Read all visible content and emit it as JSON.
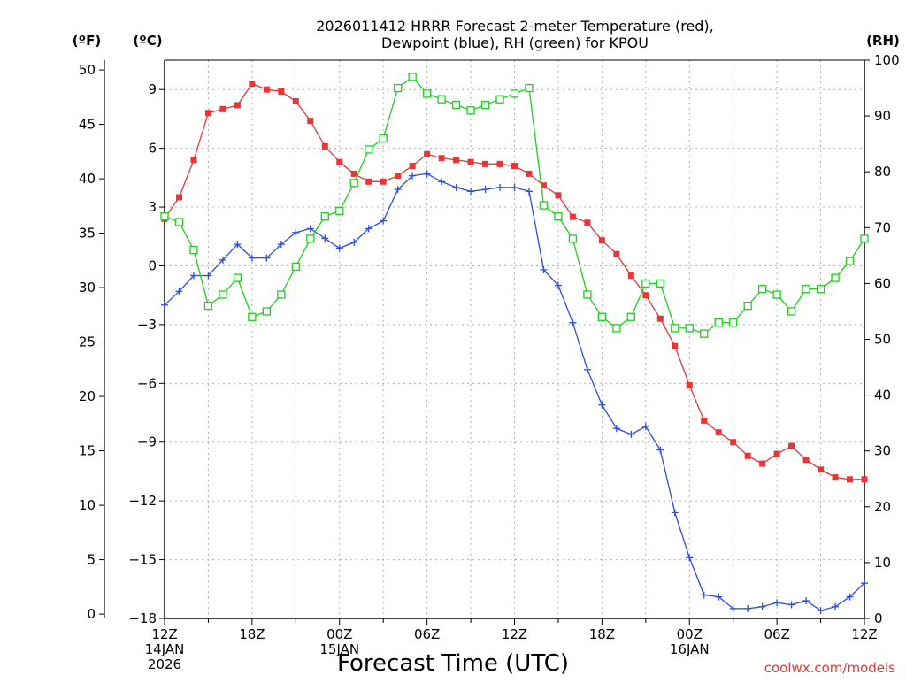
{
  "chart_data": {
    "type": "line",
    "title": [
      "2026011412 HRRR Forecast 2-meter Temperature (red),",
      "Dewpoint (blue), RH (green) for KPOU"
    ],
    "xlabel": "Forecast Time (UTC)",
    "units": {
      "left_f": "(ºF)",
      "left_c": "(ºC)",
      "right": "(RH)"
    },
    "watermark": "coolwx.com/models",
    "ylim_c": [
      -18,
      10.5
    ],
    "ylim_f": [
      -0.4,
      50.9
    ],
    "ylim_rh": [
      0,
      100
    ],
    "yticks_c": [
      "9",
      "6",
      "3",
      "0",
      "−3",
      "−6",
      "−9",
      "−12",
      "−15",
      "−18"
    ],
    "yticks_c_values": [
      9,
      6,
      3,
      0,
      -3,
      -6,
      -9,
      -12,
      -15,
      -18
    ],
    "yticks_f": [
      "50",
      "45",
      "40",
      "35",
      "30",
      "25",
      "20",
      "15",
      "10",
      "5",
      "0"
    ],
    "yticks_f_values": [
      50,
      45,
      40,
      35,
      30,
      25,
      20,
      15,
      10,
      5,
      0
    ],
    "yticks_rh": [
      "100",
      "90",
      "80",
      "70",
      "60",
      "50",
      "40",
      "30",
      "20",
      "10",
      "0"
    ],
    "yticks_rh_values": [
      100,
      90,
      80,
      70,
      60,
      50,
      40,
      30,
      20,
      10,
      0
    ],
    "xlim_hours": [
      0,
      48
    ],
    "xticks": [
      {
        "hour": 0,
        "lines": [
          "12Z",
          "14JAN",
          "2026"
        ]
      },
      {
        "hour": 6,
        "lines": [
          "18Z"
        ]
      },
      {
        "hour": 12,
        "lines": [
          "00Z",
          "15JAN"
        ]
      },
      {
        "hour": 18,
        "lines": [
          "06Z"
        ]
      },
      {
        "hour": 24,
        "lines": [
          "12Z"
        ]
      },
      {
        "hour": 30,
        "lines": [
          "18Z"
        ]
      },
      {
        "hour": 36,
        "lines": [
          "00Z",
          "16JAN"
        ]
      },
      {
        "hour": 42,
        "lines": [
          "06Z"
        ]
      },
      {
        "hour": 48,
        "lines": [
          "12Z"
        ]
      }
    ],
    "grid": true,
    "x_hours": [
      0,
      1,
      2,
      3,
      4,
      5,
      6,
      7,
      8,
      9,
      10,
      11,
      12,
      13,
      14,
      15,
      16,
      17,
      18,
      19,
      20,
      21,
      22,
      23,
      24,
      25,
      26,
      27,
      28,
      29,
      30,
      31,
      32,
      33,
      34,
      35,
      36,
      37,
      38,
      39,
      40,
      41,
      42,
      43,
      44,
      45,
      46,
      47,
      48
    ],
    "series": [
      {
        "name": "Temperature",
        "color": "#e83535",
        "marker": "filled-square",
        "axis": "celsius",
        "values": [
          2.4,
          3.5,
          5.4,
          7.8,
          8.0,
          8.2,
          9.3,
          9.0,
          8.9,
          8.4,
          7.4,
          6.1,
          5.3,
          4.7,
          4.3,
          4.3,
          4.6,
          5.1,
          5.7,
          5.5,
          5.4,
          5.3,
          5.2,
          5.2,
          5.1,
          4.7,
          4.1,
          3.6,
          2.5,
          2.2,
          1.3,
          0.6,
          -0.5,
          -1.5,
          -2.7,
          -4.1,
          -6.1,
          -7.9,
          -8.5,
          -9.0,
          -9.7,
          -10.1,
          -9.6,
          -9.2,
          -9.9,
          -10.4,
          -10.8,
          -10.9,
          -10.9
        ]
      },
      {
        "name": "Dewpoint",
        "color": "#2a4de8",
        "marker": "plus",
        "axis": "celsius",
        "values": [
          -2.0,
          -1.3,
          -0.5,
          -0.5,
          0.3,
          1.1,
          0.4,
          0.4,
          1.1,
          1.7,
          1.9,
          1.4,
          0.9,
          1.2,
          1.9,
          2.3,
          3.9,
          4.6,
          4.7,
          4.3,
          4.0,
          3.8,
          3.9,
          4.0,
          4.0,
          3.8,
          -0.2,
          -1.0,
          -2.9,
          -5.3,
          -7.1,
          -8.3,
          -8.6,
          -8.2,
          -9.4,
          -12.6,
          -14.9,
          -16.8,
          -16.9,
          -17.5,
          -17.5,
          -17.4,
          -17.2,
          -17.3,
          -17.1,
          -17.6,
          -17.4,
          -16.9,
          -16.2
        ]
      },
      {
        "name": "RH",
        "color": "#1ecf1e",
        "marker": "open-square",
        "axis": "rh",
        "values": [
          72,
          71,
          66,
          56,
          58,
          61,
          54,
          55,
          58,
          63,
          68,
          72,
          73,
          78,
          84,
          86,
          95,
          97,
          94,
          93,
          92,
          91,
          92,
          93,
          94,
          95,
          74,
          72,
          68,
          58,
          54,
          52,
          54,
          60,
          60,
          52,
          52,
          51,
          53,
          53,
          56,
          59,
          58,
          55,
          59,
          59,
          61,
          64,
          68
        ]
      }
    ]
  }
}
